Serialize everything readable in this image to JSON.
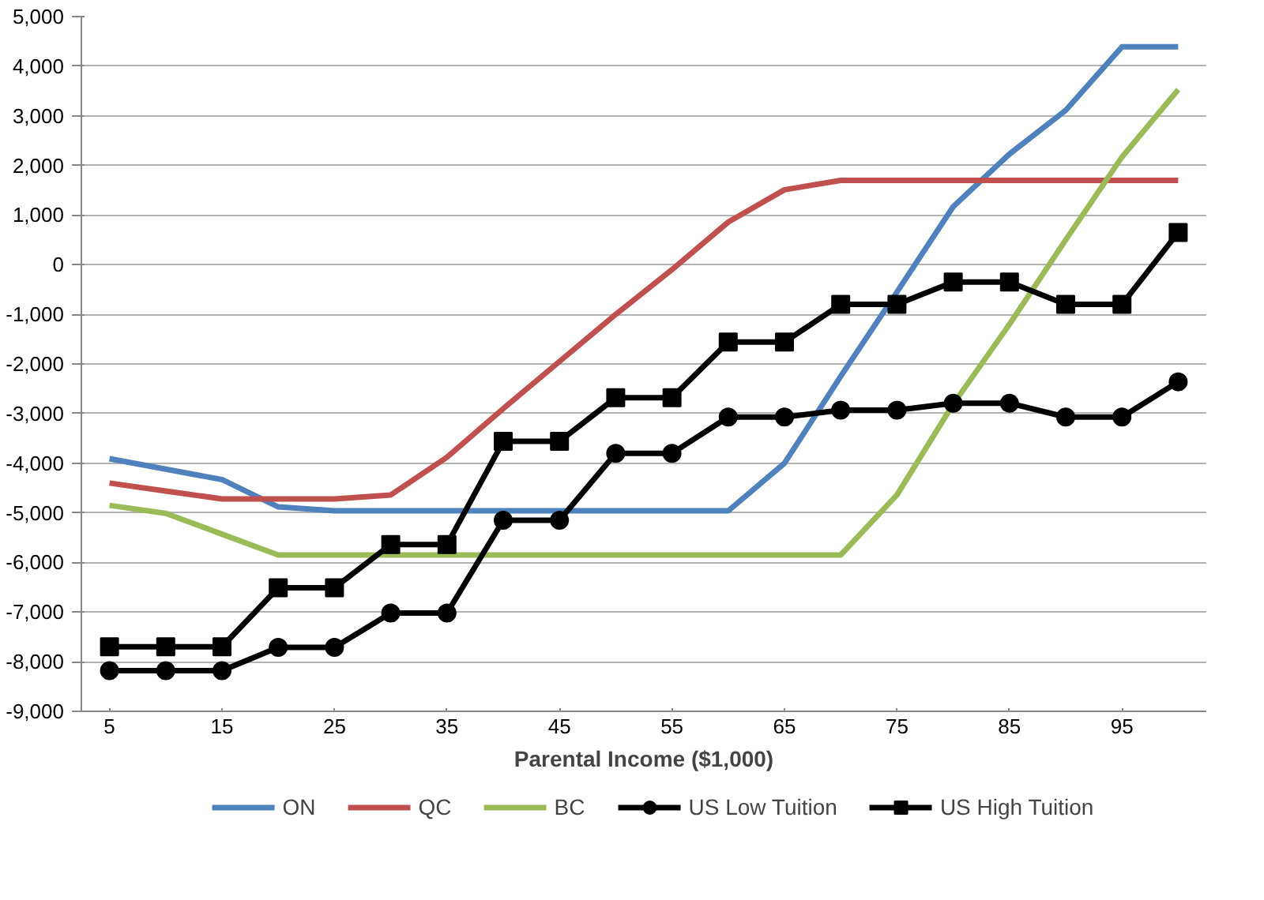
{
  "chart_data": {
    "type": "line",
    "xlabel": "Parental Income ($1,000)",
    "x": [
      5,
      10,
      15,
      20,
      25,
      30,
      35,
      40,
      45,
      50,
      55,
      60,
      65,
      70,
      75,
      80,
      85,
      90,
      95,
      100
    ],
    "xlim": [
      2.5,
      102.5
    ],
    "xticks": [
      5,
      15,
      25,
      35,
      45,
      55,
      65,
      75,
      85,
      95
    ],
    "ylim": [
      -9000,
      5000
    ],
    "yticks": [
      {
        "value": -9000,
        "label": "-9,000"
      },
      {
        "value": -8000,
        "label": "-8,000"
      },
      {
        "value": -7000,
        "label": "-7,000"
      },
      {
        "value": -6000,
        "label": "-6,000"
      },
      {
        "value": -5000,
        "label": "-5,000"
      },
      {
        "value": -4000,
        "label": "-4,000"
      },
      {
        "value": -3000,
        "label": "-3,000"
      },
      {
        "value": -2000,
        "label": "-2,000"
      },
      {
        "value": -1000,
        "label": "-1,000"
      },
      0,
      {
        "value": 1000,
        "label": "1,000"
      },
      {
        "value": 2000,
        "label": "2,000"
      },
      {
        "value": 3000,
        "label": "3,000"
      },
      {
        "value": 4000,
        "label": "4,000"
      },
      {
        "value": 5000,
        "label": "5,000"
      }
    ],
    "grid": "y",
    "legend": "bottom",
    "series": [
      {
        "name": "ON",
        "color": "#4f81bd",
        "marker": "none",
        "values": [
          -3910,
          -4120,
          -4330,
          -4880,
          -4960,
          -4960,
          -4960,
          -4960,
          -4960,
          -4960,
          -4960,
          -4960,
          -4000,
          -2250,
          -550,
          1170,
          2230,
          3110,
          4390,
          4390
        ]
      },
      {
        "name": "QC",
        "color": "#c0504d",
        "marker": "none",
        "values": [
          -4400,
          -4560,
          -4720,
          -4720,
          -4720,
          -4640,
          -3880,
          -2900,
          -1950,
          -1000,
          -100,
          860,
          1510,
          1700,
          1700,
          1700,
          1700,
          1700,
          1700,
          1700
        ]
      },
      {
        "name": "BC",
        "color": "#9bbb59",
        "marker": "none",
        "values": [
          -4850,
          -5010,
          -5430,
          -5850,
          -5850,
          -5850,
          -5850,
          -5850,
          -5850,
          -5850,
          -5850,
          -5850,
          -5850,
          -5850,
          -4640,
          -2810,
          -1200,
          500,
          2170,
          3530
        ]
      },
      {
        "name": "US Low Tuition",
        "color": "#000000",
        "marker": "circle",
        "values": [
          -8180,
          -8180,
          -8180,
          -7710,
          -7710,
          -7020,
          -7020,
          -5150,
          -5150,
          -3800,
          -3800,
          -3070,
          -3070,
          -2930,
          -2930,
          -2790,
          -2790,
          -3070,
          -3070,
          -2360
        ]
      },
      {
        "name": "US High Tuition",
        "color": "#000000",
        "marker": "square",
        "values": [
          -7700,
          -7700,
          -7700,
          -6510,
          -6510,
          -5640,
          -5640,
          -3560,
          -3560,
          -2680,
          -2680,
          -1560,
          -1560,
          -800,
          -800,
          -350,
          -350,
          -800,
          -800,
          650
        ]
      }
    ]
  }
}
